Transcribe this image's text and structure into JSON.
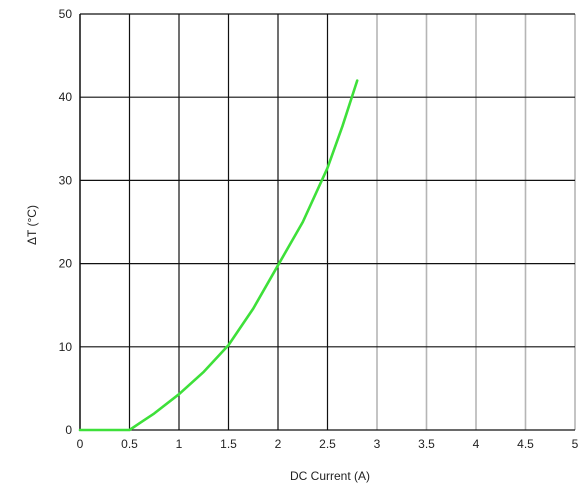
{
  "chart_data": {
    "type": "line",
    "title": "",
    "xlabel": "DC Current (A)",
    "ylabel": "ΔT (°C)",
    "xlim": [
      0,
      5
    ],
    "ylim": [
      0,
      50
    ],
    "x_ticks": [
      0,
      0.5,
      1,
      1.5,
      2,
      2.5,
      3,
      3.5,
      4,
      4.5,
      5
    ],
    "x_tick_labels": [
      "0",
      "0.5",
      "1",
      "1.5",
      "2",
      "2.5",
      "3",
      "3.5",
      "4",
      "4.5",
      "5"
    ],
    "y_ticks": [
      0,
      10,
      20,
      30,
      40,
      50
    ],
    "y_tick_labels": [
      "0",
      "10",
      "20",
      "30",
      "40",
      "50"
    ],
    "grid": true,
    "legend": "none",
    "colors": {
      "line": "#3ee03a",
      "grid_dark": "#111111",
      "grid_light": "#b5b5b5"
    },
    "series": [
      {
        "x": [
          0,
          0.5,
          0.6,
          0.75,
          1.0,
          1.25,
          1.5,
          1.75,
          2.0,
          2.25,
          2.5,
          2.65,
          2.8
        ],
        "y": [
          0,
          0,
          0.8,
          2.0,
          4.3,
          7.0,
          10.2,
          14.6,
          19.8,
          25.0,
          31.5,
          36.5,
          42.0
        ]
      }
    ]
  }
}
